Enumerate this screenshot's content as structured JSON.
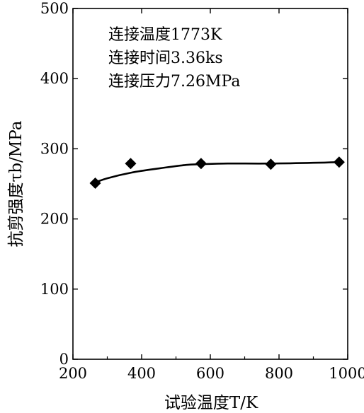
{
  "chart_data": {
    "type": "scatter",
    "x": [
      265,
      368,
      573,
      776,
      975
    ],
    "y": [
      251,
      279,
      279,
      278,
      281
    ],
    "trend_line": {
      "x": [
        265,
        300,
        370,
        450,
        530,
        573,
        650,
        776,
        900,
        975
      ],
      "y": [
        252,
        258,
        266,
        272,
        277,
        278,
        279,
        279,
        280,
        281
      ]
    },
    "xlim": [
      200,
      1000
    ],
    "ylim": [
      0,
      500
    ],
    "x_ticks": [
      "200",
      "400",
      "600",
      "800",
      "1000"
    ],
    "y_ticks": [
      "0",
      "100",
      "200",
      "300",
      "400",
      "500"
    ],
    "xlabel": "试验温度T/K",
    "ylabel": "抗剪强度τb/MPa",
    "annotations": [
      "连接温度1773K",
      "连接时间3.36ks",
      "连接压力7.26MPa"
    ],
    "marker": "diamond",
    "grid": false,
    "legend": "none",
    "colors": {
      "data": "#000000",
      "axis": "#000000"
    }
  }
}
